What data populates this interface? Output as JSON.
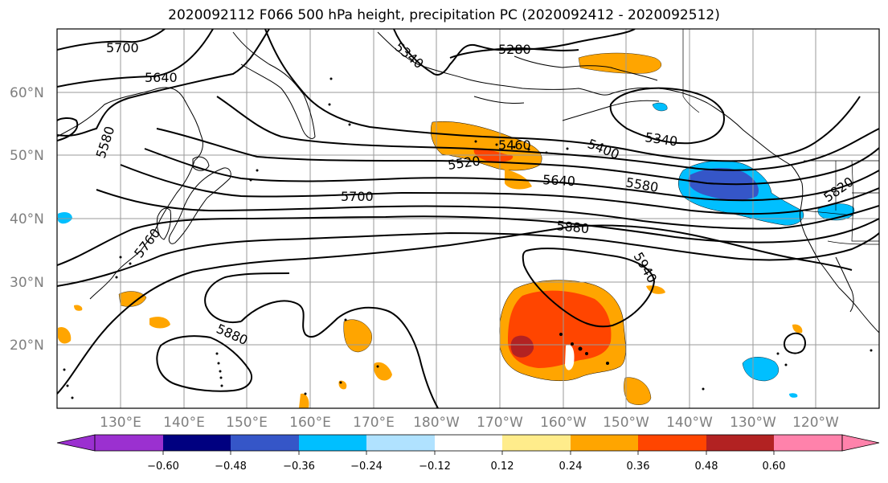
{
  "title": "2020092112 F066 500 hPa height, precipitation PC (2020092412 - 2020092512)",
  "map": {
    "lat_labels": [
      "60°N",
      "50°N",
      "40°N",
      "30°N",
      "20°N"
    ],
    "lon_labels": [
      "130°E",
      "140°E",
      "150°E",
      "160°E",
      "170°E",
      "180°W",
      "170°W",
      "160°W",
      "150°W",
      "140°W",
      "130°W",
      "120°W"
    ],
    "contour_labels": [
      "5700",
      "5640",
      "5580",
      "5340",
      "5280",
      "5460",
      "5520",
      "5400",
      "5340",
      "5640",
      "5580",
      "5820",
      "5700",
      "5880",
      "5760",
      "5940",
      "5880"
    ]
  },
  "colorbar": {
    "ticks": [
      "−0.60",
      "−0.48",
      "−0.36",
      "−0.24",
      "−0.12",
      "0.12",
      "0.24",
      "0.36",
      "0.48",
      "0.60"
    ],
    "colors": [
      "#9b30d0",
      "#000080",
      "#3556c8",
      "#00bfff",
      "#b0e2ff",
      "#ffffff",
      "#ffec8b",
      "#ffa500",
      "#ff4500",
      "#b22222",
      "#ff82ab"
    ]
  }
}
